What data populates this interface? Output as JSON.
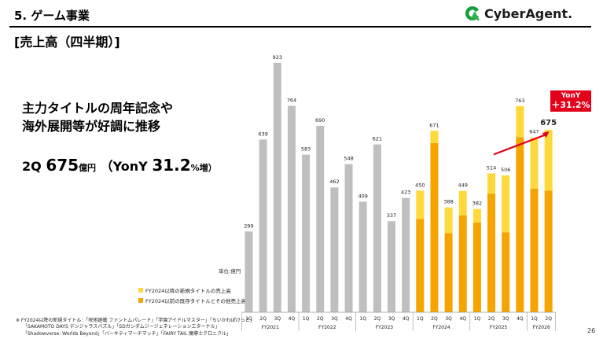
{
  "header": {
    "section_number": "5.",
    "section_title": "ゲーム事業",
    "logo_text": "CyberAgent."
  },
  "slide_heading": "[売上高（四半期）]",
  "headline": {
    "line1": "主力タイトルの周年記念や",
    "line2": "海外展開等が好調に推移"
  },
  "kpi": {
    "quarter": "2Q",
    "value": "675",
    "unit": "億円",
    "yony_open": "（YonY",
    "yony_value": "31.2",
    "yony_close": "%増）"
  },
  "unit_label": "単位:億円",
  "legend": {
    "new_titles": "FY2024以降の新規タイトルの売上高",
    "existing_titles": "FY2024以前の既存タイトルとその他売上高"
  },
  "yony_badge": {
    "label": "YonY",
    "value": "＋31.2%"
  },
  "footnote": {
    "line1": "※ FY2024以降の新規タイトル：「呪術廻戦 ファントムパレード」「学園アイドルマスター」「ちいかわぽけっと」",
    "line2": "「SAKAMOTO DAYS デンジャラスパズル」「SDガンダムジージェネレーションエターナル」",
    "line3": "「Shadowverse: Worlds Beyond」「バーキティマーチマッチ」「FAIRY TAIL 魔導士クロニクル」"
  },
  "page_number": "26",
  "colors": {
    "gray": "#bfbfbf",
    "new": "#ffd93b",
    "existing": "#f5a400",
    "accent": "#e2001a"
  },
  "chart_data": {
    "type": "bar",
    "quarters": [
      "1Q",
      "2Q",
      "3Q",
      "4Q",
      "1Q",
      "2Q",
      "3Q",
      "4Q",
      "1Q",
      "2Q",
      "3Q",
      "4Q",
      "1Q",
      "2Q",
      "3Q",
      "4Q",
      "1Q",
      "2Q",
      "3Q",
      "4Q",
      "1Q",
      "2Q"
    ],
    "fiscal_years": [
      {
        "label": "FY2021",
        "start": 0,
        "end": 3
      },
      {
        "label": "FY2022",
        "start": 4,
        "end": 7
      },
      {
        "label": "FY2023",
        "start": 8,
        "end": 11
      },
      {
        "label": "FY2024",
        "start": 12,
        "end": 15
      },
      {
        "label": "FY2025",
        "start": 16,
        "end": 19
      },
      {
        "label": "FY2026",
        "start": 20,
        "end": 21
      }
    ],
    "totals": [
      299,
      639,
      923,
      764,
      583,
      690,
      462,
      548,
      409,
      621,
      337,
      423,
      450,
      671,
      388,
      449,
      382,
      514,
      506,
      763,
      647,
      675
    ],
    "series": [
      {
        "name": "FY2024以降の新規タイトルの売上高",
        "values": [
          0,
          0,
          0,
          0,
          0,
          0,
          0,
          0,
          0,
          0,
          0,
          0,
          105,
          45,
          95,
          90,
          50,
          75,
          210,
          115,
          190,
          225
        ]
      },
      {
        "name": "FY2024以前の既存タイトルとその他売上高",
        "values": [
          0,
          0,
          0,
          0,
          0,
          0,
          0,
          0,
          0,
          0,
          0,
          0,
          345,
          626,
          293,
          359,
          332,
          439,
          296,
          648,
          457,
          450
        ]
      }
    ],
    "gray_until_index": 11,
    "highlight_total_index": 21,
    "ylim": [
      0,
      940
    ]
  }
}
